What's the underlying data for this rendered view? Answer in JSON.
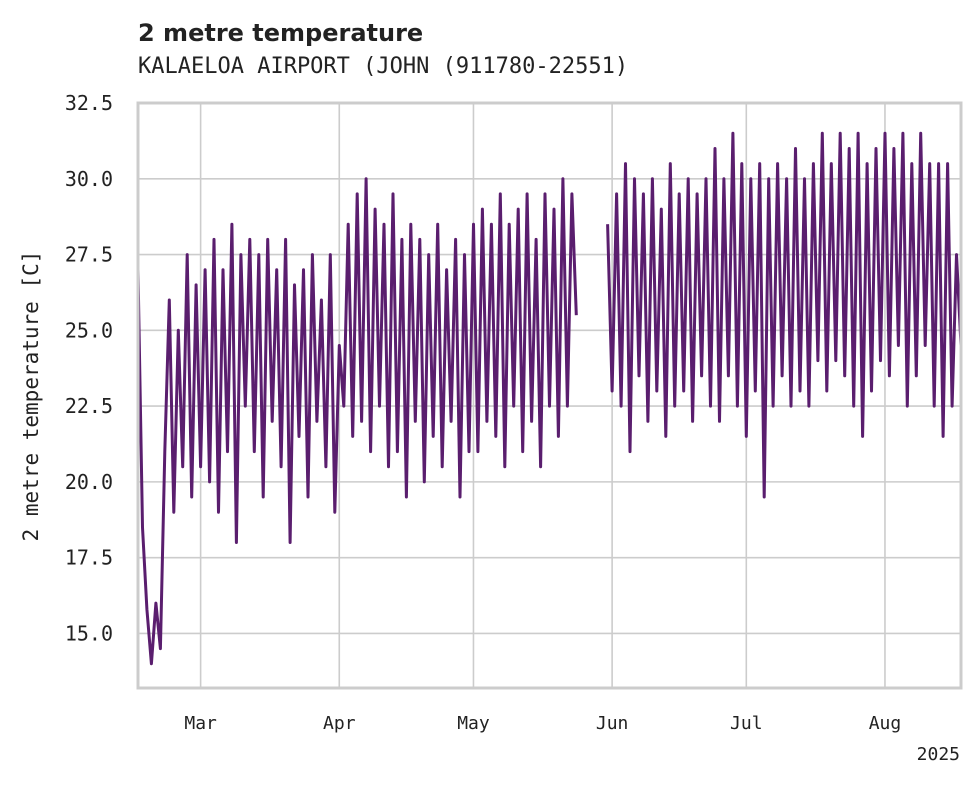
{
  "chart_data": {
    "type": "line",
    "title": "2 metre temperature",
    "subtitle": "KALAELOA AIRPORT (JOHN (911780-22551)",
    "ylabel": "2 metre temperature [C]",
    "xlabel": "",
    "year_label": "2025",
    "ylim": [
      13.2,
      32.5
    ],
    "xlim": [
      "2025-02-15",
      "2025-08-18"
    ],
    "y_ticks": [
      "15.0",
      "17.5",
      "20.0",
      "22.5",
      "25.0",
      "27.5",
      "30.0",
      "32.5"
    ],
    "x_ticks": [
      {
        "label": "Mar",
        "date": "2025-03-01"
      },
      {
        "label": "Apr",
        "date": "2025-04-01"
      },
      {
        "label": "May",
        "date": "2025-05-01"
      },
      {
        "label": "Jun",
        "date": "2025-06-01"
      },
      {
        "label": "Jul",
        "date": "2025-07-01"
      },
      {
        "label": "Aug",
        "date": "2025-08-01"
      }
    ],
    "grid": true,
    "gaps": [
      {
        "start": "2025-05-24",
        "end": "2025-05-31"
      }
    ],
    "series": [
      {
        "color": "#5a1e6e",
        "points": [
          [
            "2025-02-15",
            27.0
          ],
          [
            "2025-02-16",
            18.5
          ],
          [
            "2025-02-17",
            15.8
          ],
          [
            "2025-02-18",
            14.0
          ],
          [
            "2025-02-19",
            16.0
          ],
          [
            "2025-02-20",
            14.5
          ],
          [
            "2025-02-21",
            21.0
          ],
          [
            "2025-02-22",
            26.0
          ],
          [
            "2025-02-23",
            19.0
          ],
          [
            "2025-02-24",
            25.0
          ],
          [
            "2025-02-25",
            20.5
          ],
          [
            "2025-02-26",
            27.5
          ],
          [
            "2025-02-27",
            19.5
          ],
          [
            "2025-02-28",
            26.5
          ],
          [
            "2025-03-01",
            20.5
          ],
          [
            "2025-03-02",
            27.0
          ],
          [
            "2025-03-03",
            20.0
          ],
          [
            "2025-03-04",
            28.0
          ],
          [
            "2025-03-05",
            19.0
          ],
          [
            "2025-03-06",
            27.0
          ],
          [
            "2025-03-07",
            21.0
          ],
          [
            "2025-03-08",
            28.5
          ],
          [
            "2025-03-09",
            18.0
          ],
          [
            "2025-03-10",
            27.5
          ],
          [
            "2025-03-11",
            22.5
          ],
          [
            "2025-03-12",
            28.0
          ],
          [
            "2025-03-13",
            21.0
          ],
          [
            "2025-03-14",
            27.5
          ],
          [
            "2025-03-15",
            19.5
          ],
          [
            "2025-03-16",
            28.0
          ],
          [
            "2025-03-17",
            22.0
          ],
          [
            "2025-03-18",
            27.0
          ],
          [
            "2025-03-19",
            20.5
          ],
          [
            "2025-03-20",
            28.0
          ],
          [
            "2025-03-21",
            18.0
          ],
          [
            "2025-03-22",
            26.5
          ],
          [
            "2025-03-23",
            21.5
          ],
          [
            "2025-03-24",
            27.0
          ],
          [
            "2025-03-25",
            19.5
          ],
          [
            "2025-03-26",
            27.5
          ],
          [
            "2025-03-27",
            22.0
          ],
          [
            "2025-03-28",
            26.0
          ],
          [
            "2025-03-29",
            20.5
          ],
          [
            "2025-03-30",
            27.5
          ],
          [
            "2025-03-31",
            19.0
          ],
          [
            "2025-04-01",
            24.5
          ],
          [
            "2025-04-02",
            22.5
          ],
          [
            "2025-04-03",
            28.5
          ],
          [
            "2025-04-04",
            21.5
          ],
          [
            "2025-04-05",
            29.5
          ],
          [
            "2025-04-06",
            22.0
          ],
          [
            "2025-04-07",
            30.0
          ],
          [
            "2025-04-08",
            21.0
          ],
          [
            "2025-04-09",
            29.0
          ],
          [
            "2025-04-10",
            22.5
          ],
          [
            "2025-04-11",
            28.5
          ],
          [
            "2025-04-12",
            20.5
          ],
          [
            "2025-04-13",
            29.5
          ],
          [
            "2025-04-14",
            21.0
          ],
          [
            "2025-04-15",
            28.0
          ],
          [
            "2025-04-16",
            19.5
          ],
          [
            "2025-04-17",
            28.5
          ],
          [
            "2025-04-18",
            22.0
          ],
          [
            "2025-04-19",
            28.0
          ],
          [
            "2025-04-20",
            20.0
          ],
          [
            "2025-04-21",
            27.5
          ],
          [
            "2025-04-22",
            21.5
          ],
          [
            "2025-04-23",
            28.5
          ],
          [
            "2025-04-24",
            20.5
          ],
          [
            "2025-04-25",
            27.0
          ],
          [
            "2025-04-26",
            22.0
          ],
          [
            "2025-04-27",
            28.0
          ],
          [
            "2025-04-28",
            19.5
          ],
          [
            "2025-04-29",
            27.5
          ],
          [
            "2025-04-30",
            21.0
          ],
          [
            "2025-05-01",
            28.5
          ],
          [
            "2025-05-02",
            21.0
          ],
          [
            "2025-05-03",
            29.0
          ],
          [
            "2025-05-04",
            22.0
          ],
          [
            "2025-05-05",
            28.5
          ],
          [
            "2025-05-06",
            21.5
          ],
          [
            "2025-05-07",
            29.5
          ],
          [
            "2025-05-08",
            20.5
          ],
          [
            "2025-05-09",
            28.5
          ],
          [
            "2025-05-10",
            22.5
          ],
          [
            "2025-05-11",
            29.0
          ],
          [
            "2025-05-12",
            21.0
          ],
          [
            "2025-05-13",
            29.5
          ],
          [
            "2025-05-14",
            22.0
          ],
          [
            "2025-05-15",
            28.0
          ],
          [
            "2025-05-16",
            20.5
          ],
          [
            "2025-05-17",
            29.5
          ],
          [
            "2025-05-18",
            22.5
          ],
          [
            "2025-05-19",
            29.0
          ],
          [
            "2025-05-20",
            21.5
          ],
          [
            "2025-05-21",
            30.0
          ],
          [
            "2025-05-22",
            22.5
          ],
          [
            "2025-05-23",
            29.5
          ],
          [
            "2025-05-24",
            25.5
          ],
          [
            "2025-05-31",
            28.5
          ],
          [
            "2025-06-01",
            23.0
          ],
          [
            "2025-06-02",
            29.5
          ],
          [
            "2025-06-03",
            22.5
          ],
          [
            "2025-06-04",
            30.5
          ],
          [
            "2025-06-05",
            21.0
          ],
          [
            "2025-06-06",
            30.0
          ],
          [
            "2025-06-07",
            23.5
          ],
          [
            "2025-06-08",
            29.5
          ],
          [
            "2025-06-09",
            22.0
          ],
          [
            "2025-06-10",
            30.0
          ],
          [
            "2025-06-11",
            23.0
          ],
          [
            "2025-06-12",
            29.0
          ],
          [
            "2025-06-13",
            21.5
          ],
          [
            "2025-06-14",
            30.5
          ],
          [
            "2025-06-15",
            22.5
          ],
          [
            "2025-06-16",
            29.5
          ],
          [
            "2025-06-17",
            23.0
          ],
          [
            "2025-06-18",
            30.0
          ],
          [
            "2025-06-19",
            22.0
          ],
          [
            "2025-06-20",
            29.5
          ],
          [
            "2025-06-21",
            23.5
          ],
          [
            "2025-06-22",
            30.0
          ],
          [
            "2025-06-23",
            22.5
          ],
          [
            "2025-06-24",
            31.0
          ],
          [
            "2025-06-25",
            22.0
          ],
          [
            "2025-06-26",
            30.0
          ],
          [
            "2025-06-27",
            23.5
          ],
          [
            "2025-06-28",
            31.5
          ],
          [
            "2025-06-29",
            22.5
          ],
          [
            "2025-06-30",
            30.5
          ],
          [
            "2025-07-01",
            21.5
          ],
          [
            "2025-07-02",
            30.0
          ],
          [
            "2025-07-03",
            23.0
          ],
          [
            "2025-07-04",
            30.5
          ],
          [
            "2025-07-05",
            19.5
          ],
          [
            "2025-07-06",
            30.0
          ],
          [
            "2025-07-07",
            22.5
          ],
          [
            "2025-07-08",
            30.5
          ],
          [
            "2025-07-09",
            23.5
          ],
          [
            "2025-07-10",
            30.0
          ],
          [
            "2025-07-11",
            22.5
          ],
          [
            "2025-07-12",
            31.0
          ],
          [
            "2025-07-13",
            23.0
          ],
          [
            "2025-07-14",
            30.0
          ],
          [
            "2025-07-15",
            22.5
          ],
          [
            "2025-07-16",
            30.5
          ],
          [
            "2025-07-17",
            24.0
          ],
          [
            "2025-07-18",
            31.5
          ],
          [
            "2025-07-19",
            23.0
          ],
          [
            "2025-07-20",
            30.5
          ],
          [
            "2025-07-21",
            24.0
          ],
          [
            "2025-07-22",
            31.5
          ],
          [
            "2025-07-23",
            23.5
          ],
          [
            "2025-07-24",
            31.0
          ],
          [
            "2025-07-25",
            22.5
          ],
          [
            "2025-07-26",
            31.5
          ],
          [
            "2025-07-27",
            21.5
          ],
          [
            "2025-07-28",
            30.5
          ],
          [
            "2025-07-29",
            23.0
          ],
          [
            "2025-07-30",
            31.0
          ],
          [
            "2025-07-31",
            24.0
          ],
          [
            "2025-08-01",
            31.5
          ],
          [
            "2025-08-02",
            23.5
          ],
          [
            "2025-08-03",
            31.0
          ],
          [
            "2025-08-04",
            24.5
          ],
          [
            "2025-08-05",
            31.5
          ],
          [
            "2025-08-06",
            22.5
          ],
          [
            "2025-08-07",
            30.5
          ],
          [
            "2025-08-08",
            23.5
          ],
          [
            "2025-08-09",
            31.5
          ],
          [
            "2025-08-10",
            24.5
          ],
          [
            "2025-08-11",
            30.5
          ],
          [
            "2025-08-12",
            22.5
          ],
          [
            "2025-08-13",
            30.5
          ],
          [
            "2025-08-14",
            21.5
          ],
          [
            "2025-08-15",
            30.5
          ],
          [
            "2025-08-16",
            22.5
          ],
          [
            "2025-08-17",
            27.5
          ],
          [
            "2025-08-18",
            24.5
          ]
        ]
      }
    ]
  }
}
